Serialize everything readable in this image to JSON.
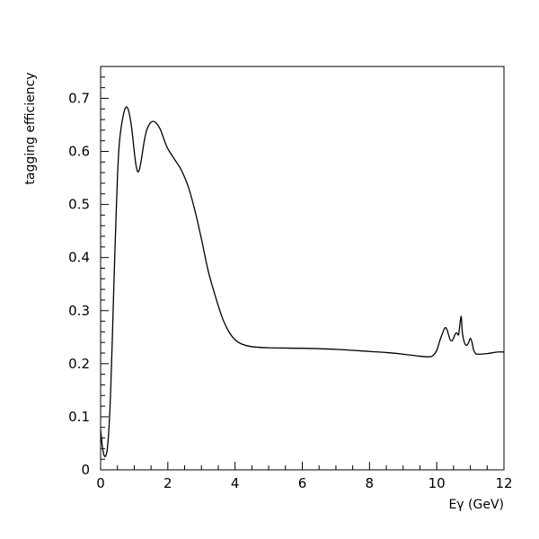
{
  "chart_data": {
    "type": "line",
    "xlabel": "Eγ (GeV)",
    "ylabel": "tagging efficiency",
    "xlim": [
      0,
      12
    ],
    "ylim": [
      0,
      0.76
    ],
    "x_ticks": [
      "0",
      "2",
      "4",
      "6",
      "8",
      "10",
      "12"
    ],
    "y_ticks": [
      "0",
      "0.1",
      "0.2",
      "0.3",
      "0.4",
      "0.5",
      "0.6",
      "0.7"
    ],
    "grid": false,
    "series": [
      {
        "color": "#000000",
        "x": [
          0,
          0.05,
          0.1,
          0.15,
          0.2,
          0.25,
          0.3,
          0.35,
          0.4,
          0.45,
          0.5,
          0.55,
          0.6,
          0.65,
          0.7,
          0.75,
          0.8,
          0.85,
          0.9,
          0.95,
          1.0,
          1.05,
          1.1,
          1.15,
          1.2,
          1.25,
          1.3,
          1.35,
          1.4,
          1.5,
          1.6,
          1.7,
          1.8,
          1.9,
          2.0,
          2.2,
          2.4,
          2.6,
          2.8,
          3.0,
          3.2,
          3.4,
          3.6,
          3.8,
          4.0,
          4.2,
          4.5,
          5.0,
          6.0,
          7.0,
          8.0,
          8.5,
          9.0,
          9.5,
          9.8,
          9.9,
          10.0,
          10.1,
          10.2,
          10.25,
          10.3,
          10.35,
          10.4,
          10.45,
          10.5,
          10.55,
          10.6,
          10.65,
          10.7,
          10.73,
          10.76,
          10.8,
          10.85,
          10.9,
          10.95,
          11.0,
          11.05,
          11.1,
          11.15,
          11.2,
          11.5,
          11.8,
          12.0
        ],
        "y": [
          0.075,
          0.045,
          0.028,
          0.026,
          0.04,
          0.08,
          0.15,
          0.25,
          0.36,
          0.46,
          0.55,
          0.61,
          0.64,
          0.66,
          0.675,
          0.683,
          0.682,
          0.672,
          0.655,
          0.63,
          0.6,
          0.575,
          0.562,
          0.565,
          0.58,
          0.6,
          0.62,
          0.635,
          0.645,
          0.655,
          0.656,
          0.65,
          0.638,
          0.62,
          0.605,
          0.585,
          0.565,
          0.535,
          0.49,
          0.435,
          0.375,
          0.33,
          0.29,
          0.262,
          0.245,
          0.237,
          0.232,
          0.23,
          0.229,
          0.227,
          0.223,
          0.221,
          0.218,
          0.214,
          0.213,
          0.216,
          0.225,
          0.245,
          0.262,
          0.268,
          0.265,
          0.255,
          0.245,
          0.243,
          0.248,
          0.256,
          0.258,
          0.255,
          0.28,
          0.288,
          0.26,
          0.245,
          0.236,
          0.235,
          0.24,
          0.248,
          0.24,
          0.225,
          0.22,
          0.218,
          0.219,
          0.222,
          0.222
        ]
      }
    ]
  }
}
